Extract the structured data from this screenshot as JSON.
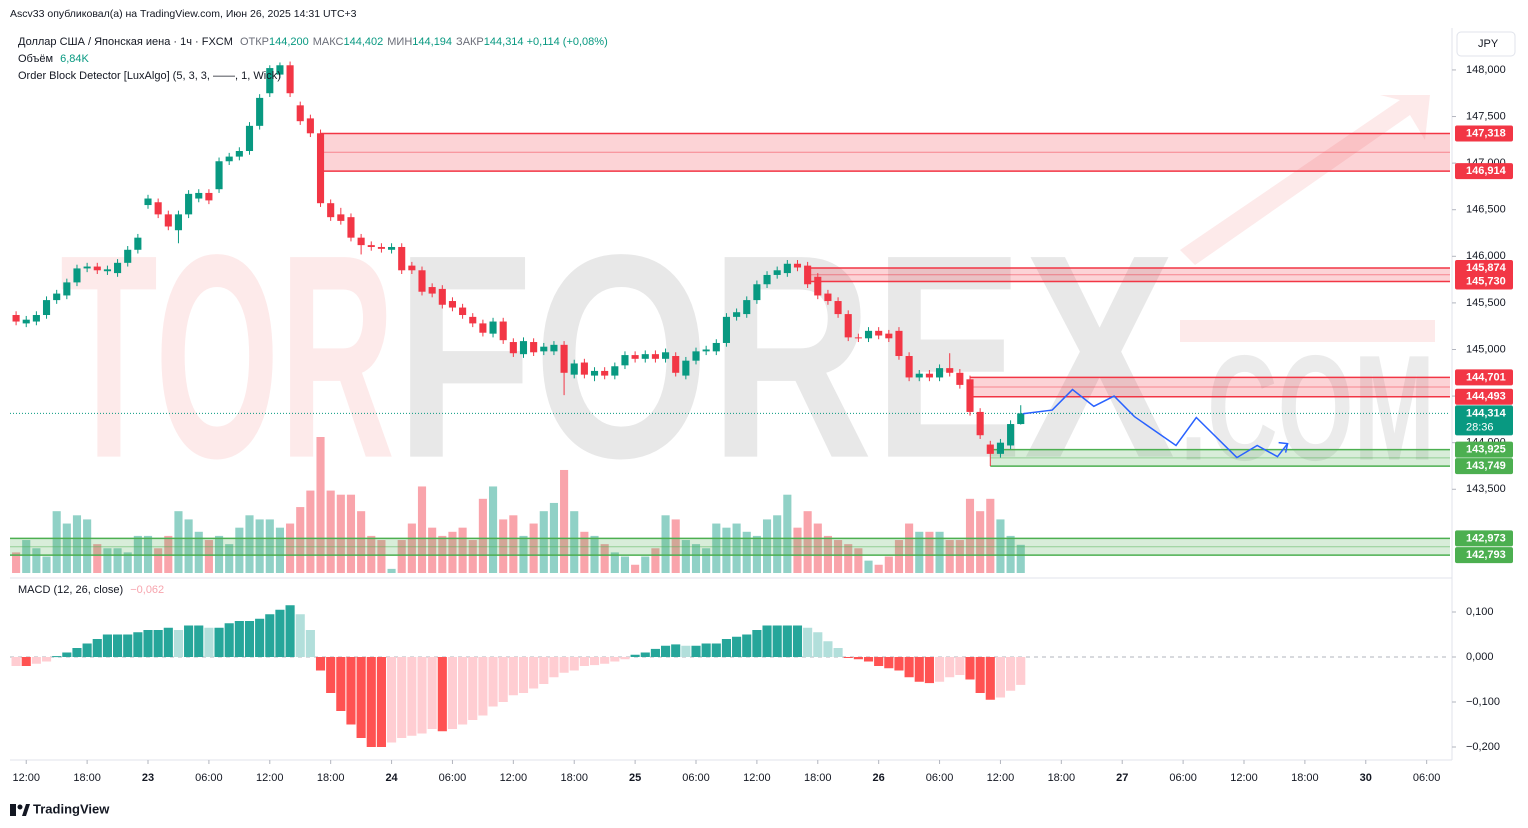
{
  "header": {
    "publisher": "Ascv33 опубликовал(а) на TradingView.com, Июн 26, 2025 14:31 UTC+3",
    "footer": "TradingView",
    "currency": "JPY"
  },
  "chart_data": {
    "type": "candlestick",
    "symbol": "Доллар США / Японская иена · 1ч · FXCM",
    "ohlc_legend": [
      {
        "label": "ОТКР",
        "value": "144,200"
      },
      {
        "label": "МАКС",
        "value": "144,402"
      },
      {
        "label": "МИН",
        "value": "144,194"
      },
      {
        "label": "ЗАКР",
        "value": "144,314"
      }
    ],
    "change": "+0,114 (+0,08%)",
    "indicator": "Order Block Detector [LuxAlgo] (5, 3, 3, ——, 1, Wick)",
    "watermark": [
      "TOR",
      "FOREX",
      ".COM"
    ],
    "up_color": "#089981",
    "down_color": "#f23645",
    "ylim": [
      142.58,
      148.45
    ],
    "yticks": [
      {
        "value": 148,
        "label": "148,000"
      },
      {
        "value": 147.5,
        "label": "147,500"
      },
      {
        "value": 147,
        "label": "147,000"
      },
      {
        "value": 146.5,
        "label": "146,500"
      },
      {
        "value": 146,
        "label": "146,000"
      },
      {
        "value": 145.5,
        "label": "145,500"
      },
      {
        "value": 145,
        "label": "145,000"
      },
      {
        "value": 144.5,
        "label": "144,500"
      },
      {
        "value": 144,
        "label": "144,000"
      },
      {
        "value": 143.5,
        "label": "143,500"
      }
    ],
    "xlim": [
      -0.6,
      141.3
    ],
    "xticks": [
      {
        "value": 1,
        "label": "12:00"
      },
      {
        "value": 7,
        "label": "18:00"
      },
      {
        "value": 13,
        "label": "23"
      },
      {
        "value": 19,
        "label": "06:00"
      },
      {
        "value": 25,
        "label": "12:00"
      },
      {
        "value": 31,
        "label": "18:00"
      },
      {
        "value": 37,
        "label": "24"
      },
      {
        "value": 43,
        "label": "06:00"
      },
      {
        "value": 49,
        "label": "12:00"
      },
      {
        "value": 55,
        "label": "18:00"
      },
      {
        "value": 61,
        "label": "25"
      },
      {
        "value": 67,
        "label": "06:00"
      },
      {
        "value": 73,
        "label": "12:00"
      },
      {
        "value": 79,
        "label": "18:00"
      },
      {
        "value": 85,
        "label": "26"
      },
      {
        "value": 91,
        "label": "06:00"
      },
      {
        "value": 97,
        "label": "12:00"
      },
      {
        "value": 103,
        "label": "18:00"
      },
      {
        "value": 109,
        "label": "27"
      },
      {
        "value": 115,
        "label": "06:00"
      },
      {
        "value": 121,
        "label": "12:00"
      },
      {
        "value": 127,
        "label": "18:00"
      },
      {
        "value": 133,
        "label": "30"
      },
      {
        "value": 139,
        "label": "06:00"
      }
    ],
    "ohlc": [
      [
        145.37,
        145.41,
        145.26,
        145.3
      ],
      [
        145.28,
        145.36,
        145.24,
        145.32
      ],
      [
        145.3,
        145.41,
        145.26,
        145.37
      ],
      [
        145.37,
        145.57,
        145.33,
        145.53
      ],
      [
        145.53,
        145.64,
        145.49,
        145.6
      ],
      [
        145.58,
        145.76,
        145.54,
        145.72
      ],
      [
        145.72,
        145.91,
        145.68,
        145.87
      ],
      [
        145.87,
        145.93,
        145.83,
        145.89
      ],
      [
        145.89,
        145.93,
        145.81,
        145.85
      ],
      [
        145.84,
        145.9,
        145.8,
        145.86
      ],
      [
        145.82,
        145.97,
        145.78,
        145.93
      ],
      [
        145.93,
        146.11,
        145.89,
        146.07
      ],
      [
        146.07,
        146.24,
        146.03,
        146.2
      ],
      [
        146.55,
        146.66,
        146.51,
        146.62
      ],
      [
        146.58,
        146.62,
        146.41,
        146.45
      ],
      [
        146.45,
        146.49,
        146.28,
        146.32
      ],
      [
        146.28,
        146.49,
        146.14,
        146.45
      ],
      [
        146.45,
        146.71,
        146.41,
        146.67
      ],
      [
        146.62,
        146.72,
        146.58,
        146.68
      ],
      [
        146.68,
        146.72,
        146.56,
        146.6
      ],
      [
        146.72,
        147.06,
        146.68,
        147.02
      ],
      [
        147.02,
        147.11,
        146.98,
        147.07
      ],
      [
        147.07,
        147.17,
        147.03,
        147.13
      ],
      [
        147.13,
        147.44,
        147.09,
        147.4
      ],
      [
        147.4,
        147.74,
        147.36,
        147.7
      ],
      [
        147.75,
        148.05,
        147.71,
        148.02
      ],
      [
        147.95,
        148.08,
        147.91,
        148.05
      ],
      [
        148.05,
        148.09,
        147.71,
        147.75
      ],
      [
        147.62,
        147.66,
        147.41,
        147.45
      ],
      [
        147.48,
        147.52,
        147.28,
        147.32
      ],
      [
        147.32,
        147.36,
        146.53,
        146.57
      ],
      [
        146.57,
        146.61,
        146.38,
        146.42
      ],
      [
        146.45,
        146.52,
        146.34,
        146.38
      ],
      [
        146.42,
        146.46,
        146.16,
        146.2
      ],
      [
        146.2,
        146.24,
        146.02,
        146.12
      ],
      [
        146.12,
        146.16,
        146.06,
        146.1
      ],
      [
        146.1,
        146.14,
        146.04,
        146.08
      ],
      [
        146.07,
        146.14,
        146.03,
        146.1
      ],
      [
        146.1,
        146.14,
        145.81,
        145.85
      ],
      [
        145.9,
        145.94,
        145.81,
        145.85
      ],
      [
        145.85,
        145.89,
        145.58,
        145.62
      ],
      [
        145.67,
        145.71,
        145.56,
        145.6
      ],
      [
        145.65,
        145.69,
        145.44,
        145.48
      ],
      [
        145.52,
        145.56,
        145.41,
        145.45
      ],
      [
        145.45,
        145.49,
        145.33,
        145.37
      ],
      [
        145.35,
        145.39,
        145.24,
        145.28
      ],
      [
        145.28,
        145.32,
        145.14,
        145.18
      ],
      [
        145.17,
        145.34,
        145.13,
        145.3
      ],
      [
        145.3,
        145.34,
        145.06,
        145.1
      ],
      [
        145.08,
        145.12,
        144.92,
        144.96
      ],
      [
        144.95,
        145.13,
        144.91,
        145.09
      ],
      [
        145.08,
        145.12,
        144.93,
        144.97
      ],
      [
        144.98,
        145.07,
        144.94,
        145.03
      ],
      [
        144.98,
        145.09,
        144.94,
        145.05
      ],
      [
        145.05,
        145.09,
        144.51,
        144.75
      ],
      [
        144.73,
        144.89,
        144.69,
        144.85
      ],
      [
        144.86,
        144.9,
        144.69,
        144.73
      ],
      [
        144.72,
        144.81,
        144.66,
        144.77
      ],
      [
        144.77,
        144.81,
        144.68,
        144.72
      ],
      [
        144.72,
        144.86,
        144.68,
        144.82
      ],
      [
        144.83,
        144.98,
        144.79,
        144.94
      ],
      [
        144.94,
        144.98,
        144.86,
        144.9
      ],
      [
        144.9,
        144.99,
        144.86,
        144.95
      ],
      [
        144.95,
        144.99,
        144.86,
        144.9
      ],
      [
        144.9,
        145.01,
        144.86,
        144.97
      ],
      [
        144.93,
        144.97,
        144.71,
        144.75
      ],
      [
        144.72,
        144.92,
        144.68,
        144.88
      ],
      [
        144.88,
        145.02,
        144.84,
        144.98
      ],
      [
        144.98,
        145.04,
        144.94,
        145.0
      ],
      [
        144.98,
        145.11,
        144.94,
        145.07
      ],
      [
        145.07,
        145.39,
        145.03,
        145.35
      ],
      [
        145.35,
        145.44,
        145.31,
        145.4
      ],
      [
        145.38,
        145.57,
        145.34,
        145.53
      ],
      [
        145.53,
        145.74,
        145.49,
        145.7
      ],
      [
        145.7,
        145.84,
        145.66,
        145.8
      ],
      [
        145.8,
        145.89,
        145.76,
        145.85
      ],
      [
        145.82,
        145.96,
        145.78,
        145.92
      ],
      [
        145.92,
        145.96,
        145.84,
        145.88
      ],
      [
        145.9,
        145.94,
        145.66,
        145.7
      ],
      [
        145.78,
        145.82,
        145.54,
        145.58
      ],
      [
        145.6,
        145.64,
        145.48,
        145.52
      ],
      [
        145.52,
        145.56,
        145.34,
        145.38
      ],
      [
        145.38,
        145.42,
        145.09,
        145.13
      ],
      [
        145.13,
        145.17,
        145.08,
        145.12
      ],
      [
        145.12,
        145.24,
        145.08,
        145.2
      ],
      [
        145.2,
        145.24,
        145.11,
        145.15
      ],
      [
        145.17,
        145.21,
        145.08,
        145.12
      ],
      [
        145.2,
        145.24,
        144.89,
        144.93
      ],
      [
        144.93,
        144.97,
        144.66,
        144.7
      ],
      [
        144.7,
        144.78,
        144.66,
        144.74
      ],
      [
        144.74,
        144.78,
        144.66,
        144.7
      ],
      [
        144.7,
        144.84,
        144.66,
        144.8
      ],
      [
        144.8,
        144.96,
        144.71,
        144.75
      ],
      [
        144.75,
        144.79,
        144.58,
        144.62
      ],
      [
        144.68,
        144.72,
        144.29,
        144.33
      ],
      [
        144.33,
        144.37,
        144.04,
        144.08
      ],
      [
        143.98,
        144.02,
        143.75,
        143.88
      ],
      [
        143.88,
        144.04,
        143.84,
        144.0
      ],
      [
        143.97,
        144.24,
        143.93,
        144.2
      ],
      [
        144.2,
        144.402,
        144.194,
        144.314
      ]
    ],
    "volume": {
      "label": "Объём",
      "legend_value": "6,84K",
      "values": [
        5,
        8,
        6,
        4,
        15,
        12,
        14,
        13,
        7,
        6,
        6,
        5,
        9,
        9,
        6,
        9,
        15,
        13,
        10,
        8,
        9,
        7,
        11,
        14,
        13,
        13,
        11,
        12,
        16,
        20,
        33,
        20,
        19,
        19,
        15,
        9,
        8,
        1,
        8,
        12,
        21,
        11,
        9,
        10,
        11,
        8,
        18,
        21,
        13,
        14,
        9,
        12,
        15,
        17,
        25,
        15,
        10,
        9,
        7,
        5,
        4,
        2,
        4,
        6,
        14,
        13,
        8,
        7,
        6,
        12,
        11,
        12,
        10,
        9,
        13,
        14,
        19,
        11,
        15,
        12,
        9,
        8,
        7,
        6,
        3,
        2,
        4,
        8,
        12,
        10,
        10,
        10,
        8,
        8,
        18,
        15,
        18,
        13,
        9,
        6.84
      ]
    },
    "order_blocks": [
      {
        "top": 147.318,
        "bottom": 146.914,
        "labels": [
          "147,318",
          "146,914"
        ],
        "start": 30,
        "color": "#f23645"
      },
      {
        "top": 145.874,
        "bottom": 145.73,
        "labels": [
          "145,874",
          "145,730"
        ],
        "start": 78,
        "color": "#f23645"
      },
      {
        "top": 144.701,
        "bottom": 144.493,
        "labels": [
          "144,701",
          "144,493"
        ],
        "start": 94,
        "color": "#f23645"
      },
      {
        "top": 143.925,
        "bottom": 143.749,
        "labels": [
          "143,925",
          "143,749"
        ],
        "start": 96,
        "color": "#4caf50"
      },
      {
        "top": 142.973,
        "bottom": 142.793,
        "labels": [
          "142,973",
          "142,793"
        ],
        "start": -0.6,
        "color": "#4caf50"
      }
    ],
    "last_price": {
      "value": 144.314,
      "label": "144,314",
      "countdown": "28:36"
    },
    "forecast": {
      "color": "#2962ff",
      "x": [
        99.2,
        102.1,
        104.1,
        106.2,
        108.2,
        110.2,
        114.3,
        116.3,
        120.3,
        122.3,
        124.3,
        125.3
      ],
      "y": [
        144.31,
        144.35,
        144.57,
        144.39,
        144.5,
        144.28,
        143.97,
        144.27,
        143.84,
        143.97,
        143.85,
        143.99
      ]
    },
    "macd": {
      "label": "MACD (12, 26, close)",
      "legend_value": "−0,062",
      "ylim": [
        -0.22,
        0.14
      ],
      "yticks": [
        {
          "value": 0.1,
          "label": "0,100"
        },
        {
          "value": 0,
          "label": "0,000"
        },
        {
          "value": -0.1,
          "label": "−0,100"
        },
        {
          "value": -0.2,
          "label": "−0,200"
        }
      ],
      "values": [
        -0.02,
        -0.02,
        -0.015,
        -0.01,
        0.002,
        0.01,
        0.02,
        0.03,
        0.04,
        0.05,
        0.05,
        0.05,
        0.055,
        0.06,
        0.06,
        0.065,
        0.06,
        0.07,
        0.07,
        0.065,
        0.065,
        0.075,
        0.08,
        0.08,
        0.085,
        0.095,
        0.105,
        0.115,
        0.095,
        0.06,
        -0.03,
        -0.08,
        -0.12,
        -0.15,
        -0.18,
        -0.2,
        -0.2,
        -0.19,
        -0.18,
        -0.175,
        -0.17,
        -0.16,
        -0.165,
        -0.16,
        -0.15,
        -0.14,
        -0.13,
        -0.11,
        -0.1,
        -0.085,
        -0.08,
        -0.07,
        -0.06,
        -0.045,
        -0.035,
        -0.03,
        -0.02,
        -0.018,
        -0.015,
        -0.01,
        -0.005,
        0.005,
        0.01,
        0.018,
        0.025,
        0.028,
        0.025,
        0.025,
        0.03,
        0.03,
        0.04,
        0.045,
        0.05,
        0.06,
        0.07,
        0.07,
        0.07,
        0.07,
        0.065,
        0.055,
        0.035,
        0.02,
        -0.002,
        -0.005,
        -0.01,
        -0.02,
        -0.025,
        -0.03,
        -0.045,
        -0.055,
        -0.058,
        -0.055,
        -0.045,
        -0.04,
        -0.05,
        -0.08,
        -0.095,
        -0.09,
        -0.075,
        -0.062
      ]
    }
  }
}
